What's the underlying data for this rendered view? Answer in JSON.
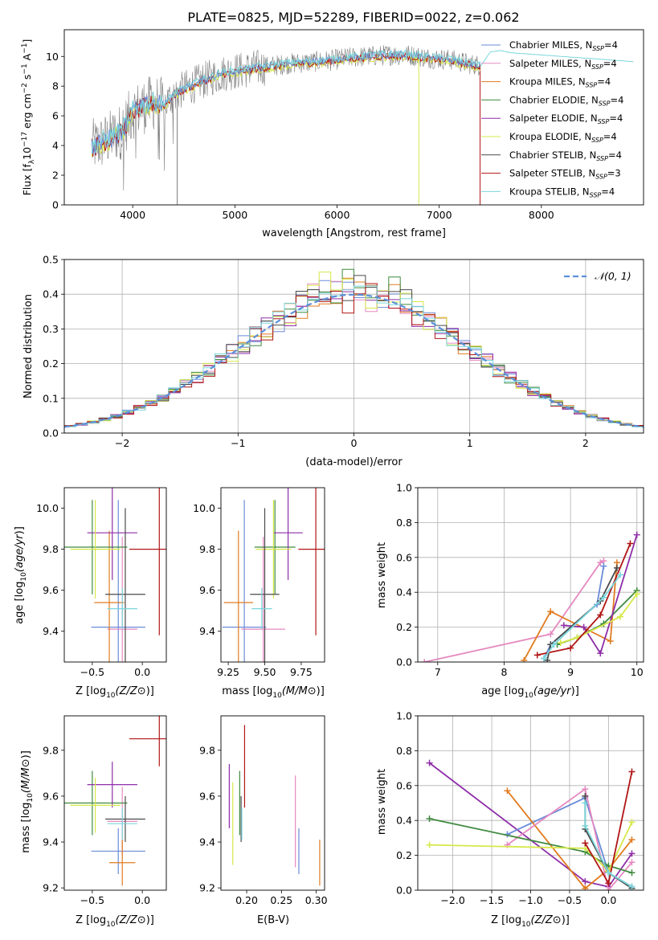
{
  "title": "PLATE=0825, MJD=52289, FIBERID=0022, z=0.062",
  "colors": {
    "Chabrier MILES": "#6a8bd8",
    "Salpeter MILES": "#e58ac0",
    "Kroupa MILES": "#e07b20",
    "Chabrier ELODIE": "#3f8a3f",
    "Salpeter ELODIE": "#8e2ea8",
    "Kroupa ELODIE": "#d6e84a",
    "Chabrier STELIB": "#4a4a4a",
    "Salpeter STELIB": "#b01515",
    "Kroupa STELIB": "#7ad6dc",
    "data": "#808080",
    "gauss": "#5b8fd9"
  },
  "chart_data": [
    {
      "type": "line",
      "xlabel": "wavelength [Angstrom, rest frame]",
      "ylabel": "Flux [f_λ10^-17 erg cm^-2 s^-1 A^-1]",
      "xlim": [
        3330,
        9000
      ],
      "ylim": [
        0,
        11.8
      ],
      "xticks": [
        4000,
        5000,
        6000,
        7000,
        8000
      ],
      "yticks": [
        0,
        2,
        4,
        6,
        8,
        10
      ],
      "grid": false,
      "legend_position": "top-right",
      "legend": [
        {
          "label": "Chabrier MILES, N",
          "sub": "SSP",
          "suffix": "=4",
          "model": "Chabrier MILES"
        },
        {
          "label": "Salpeter MILES, N",
          "sub": "SSP",
          "suffix": "=4",
          "model": "Salpeter MILES"
        },
        {
          "label": "Kroupa MILES, N",
          "sub": "SSP",
          "suffix": "=4",
          "model": "Kroupa MILES"
        },
        {
          "label": "Chabrier ELODIE, N",
          "sub": "SSP",
          "suffix": "=4",
          "model": "Chabrier ELODIE"
        },
        {
          "label": "Salpeter ELODIE, N",
          "sub": "SSP",
          "suffix": "=4",
          "model": "Salpeter ELODIE"
        },
        {
          "label": "Kroupa ELODIE, N",
          "sub": "SSP",
          "suffix": "=4",
          "model": "Kroupa ELODIE"
        },
        {
          "label": "Chabrier STELIB, N",
          "sub": "SSP",
          "suffix": "=4",
          "model": "Chabrier STELIB"
        },
        {
          "label": "Salpeter STELIB, N",
          "sub": "SSP",
          "suffix": "=3",
          "model": "Salpeter STELIB"
        },
        {
          "label": "Kroupa STELIB, N",
          "sub": "SSP",
          "suffix": "=4",
          "model": "Kroupa STELIB"
        }
      ],
      "continuum": {
        "x": [
          3600,
          3700,
          3800,
          3900,
          4000,
          4100,
          4200,
          4300,
          4400,
          4500,
          4700,
          4900,
          5100,
          5300,
          5500,
          5700,
          5900,
          6100,
          6300,
          6500,
          6700,
          6900,
          7100,
          7300,
          7400
        ],
        "y": [
          3.9,
          4.2,
          4.6,
          5.0,
          6.3,
          6.6,
          6.9,
          6.7,
          7.4,
          7.8,
          8.4,
          8.9,
          9.1,
          9.3,
          9.5,
          9.6,
          9.7,
          9.9,
          10.0,
          10.1,
          10.1,
          9.9,
          9.8,
          9.5,
          9.4
        ]
      },
      "model_tail": {
        "x": [
          7400,
          7500,
          7600,
          7700,
          7800,
          7900,
          8000,
          8100,
          8200,
          8300,
          8400,
          8500,
          8600,
          8700,
          8800,
          8900
        ],
        "y": [
          9.3,
          10.3,
          10.4,
          10.25,
          10.2,
          10.15,
          10.1,
          10.05,
          10.0,
          9.95,
          9.9,
          9.85,
          9.8,
          9.75,
          9.7,
          9.65
        ]
      }
    },
    {
      "type": "histogram",
      "xlabel": "(data-model)/error",
      "ylabel": "Normed distribution",
      "xlim": [
        -2.5,
        2.5
      ],
      "ylim": [
        0,
        0.5
      ],
      "xticks": [
        -2,
        -1,
        0,
        1,
        2
      ],
      "yticks": [
        0.0,
        0.1,
        0.2,
        0.3,
        0.4,
        0.5
      ],
      "grid": true,
      "legend_position": "top-right",
      "legend": [
        {
          "label": "𝒩(0, 1)"
        }
      ],
      "bin_width": 0.1,
      "bin_start": -2.5
    },
    {
      "type": "scatter",
      "xlabel": "Z [log10(Z/Z⊙)]",
      "ylabel": "age  [log10(age/yr)]",
      "xlim": [
        -0.78,
        0.24
      ],
      "ylim": [
        9.25,
        10.1
      ],
      "xticks": [
        -0.5,
        0.0
      ],
      "yticks": [
        9.4,
        9.6,
        9.8,
        10.0
      ],
      "points": [
        {
          "model": "Chabrier MILES",
          "x": -0.24,
          "xerr": 0.27,
          "y": 9.42,
          "yerr": 0.62
        },
        {
          "model": "Salpeter MILES",
          "x": -0.2,
          "xerr": 0.15,
          "y": 9.41,
          "yerr": 0.45
        },
        {
          "model": "Kroupa MILES",
          "x": -0.33,
          "xerr": 0.15,
          "y": 9.54,
          "yerr": 0.35
        },
        {
          "model": "Chabrier ELODIE",
          "x": -0.5,
          "xerr": 0.35,
          "y": 9.81,
          "yerr": 0.23
        },
        {
          "model": "Salpeter ELODIE",
          "x": -0.3,
          "xerr": 0.25,
          "y": 9.88,
          "yerr": 0.23
        },
        {
          "model": "Kroupa ELODIE",
          "x": -0.47,
          "xerr": 0.25,
          "y": 9.8,
          "yerr": 0.24
        },
        {
          "model": "Chabrier STELIB",
          "x": -0.17,
          "xerr": 0.2,
          "y": 9.58,
          "yerr": 0.42
        },
        {
          "model": "Salpeter STELIB",
          "x": 0.17,
          "xerr": 0.3,
          "y": 9.8,
          "yerr": 0.42
        },
        {
          "model": "Kroupa STELIB",
          "x": -0.2,
          "xerr": 0.15,
          "y": 9.51,
          "yerr": 0.1
        }
      ]
    },
    {
      "type": "scatter",
      "xlabel": "mass [log10(M/M⊙)]",
      "ylabel": "",
      "xlim": [
        9.2,
        9.91
      ],
      "ylim": [
        9.25,
        10.1
      ],
      "xticks": [
        9.25,
        9.5,
        9.75
      ],
      "yticks": [
        9.4,
        9.6,
        9.8,
        10.0
      ],
      "points": [
        {
          "model": "Chabrier MILES",
          "x": 9.36,
          "xerr": 0.15,
          "y": 9.42,
          "yerr": 0.62
        },
        {
          "model": "Salpeter MILES",
          "x": 9.49,
          "xerr": 0.15,
          "y": 9.41,
          "yerr": 0.45
        },
        {
          "model": "Kroupa MILES",
          "x": 9.32,
          "xerr": 0.1,
          "y": 9.54,
          "yerr": 0.35
        },
        {
          "model": "Chabrier ELODIE",
          "x": 9.57,
          "xerr": 0.14,
          "y": 9.81,
          "yerr": 0.23
        },
        {
          "model": "Salpeter ELODIE",
          "x": 9.66,
          "xerr": 0.1,
          "y": 9.88,
          "yerr": 0.23
        },
        {
          "model": "Kroupa ELODIE",
          "x": 9.56,
          "xerr": 0.12,
          "y": 9.8,
          "yerr": 0.24
        },
        {
          "model": "Chabrier STELIB",
          "x": 9.5,
          "xerr": 0.1,
          "y": 9.58,
          "yerr": 0.42
        },
        {
          "model": "Salpeter STELIB",
          "x": 9.85,
          "xerr": 0.12,
          "y": 9.8,
          "yerr": 0.42
        },
        {
          "model": "Kroupa STELIB",
          "x": 9.48,
          "xerr": 0.07,
          "y": 9.51,
          "yerr": 0.1
        }
      ]
    },
    {
      "type": "line",
      "xlabel": "age  [log10(age/yr)]",
      "ylabel": "mass weight",
      "xlim": [
        6.7,
        10.1
      ],
      "ylim": [
        0.0,
        1.0
      ],
      "xticks": [
        7,
        8,
        9,
        10
      ],
      "yticks": [
        0.0,
        0.2,
        0.4,
        0.6,
        0.8,
        1.0
      ],
      "grid": true,
      "series": [
        {
          "model": "Salpeter MILES",
          "x": [
            6.8,
            8.7,
            9.45,
            9.5
          ],
          "y": [
            0.0,
            0.16,
            0.57,
            0.58
          ]
        },
        {
          "model": "Chabrier MILES",
          "x": [
            8.6,
            8.7,
            9.4,
            9.5
          ],
          "y": [
            0.02,
            0.1,
            0.33,
            0.55
          ]
        },
        {
          "model": "Kroupa MILES",
          "x": [
            8.3,
            8.7,
            9.6,
            9.7
          ],
          "y": [
            0.01,
            0.29,
            0.12,
            0.57
          ]
        },
        {
          "model": "Chabrier ELODIE",
          "x": [
            8.8,
            9.1,
            9.5,
            10.0
          ],
          "y": [
            0.1,
            0.14,
            0.22,
            0.41
          ]
        },
        {
          "model": "Salpeter ELODIE",
          "x": [
            8.9,
            9.2,
            9.45,
            10.0
          ],
          "y": [
            0.21,
            0.2,
            0.05,
            0.73
          ]
        },
        {
          "model": "Kroupa ELODIE",
          "x": [
            8.85,
            9.1,
            9.75,
            10.0
          ],
          "y": [
            0.11,
            0.14,
            0.26,
            0.39
          ]
        },
        {
          "model": "Chabrier STELIB",
          "x": [
            8.65,
            8.7,
            9.45,
            9.7
          ],
          "y": [
            0.01,
            0.1,
            0.35,
            0.54
          ]
        },
        {
          "model": "Salpeter STELIB",
          "x": [
            8.5,
            9.0,
            9.45,
            9.9
          ],
          "y": [
            0.04,
            0.08,
            0.27,
            0.68
          ]
        },
        {
          "model": "Kroupa STELIB",
          "x": [
            8.6,
            8.75,
            9.5,
            9.75
          ],
          "y": [
            0.02,
            0.1,
            0.37,
            0.5
          ]
        }
      ]
    },
    {
      "type": "scatter",
      "xlabel": "Z [log10(Z/Z⊙)]",
      "ylabel": "mass [log10(M/M⊙)]",
      "xlim": [
        -0.78,
        0.24
      ],
      "ylim": [
        9.19,
        9.95
      ],
      "xticks": [
        -0.5,
        0.0
      ],
      "yticks": [
        9.2,
        9.4,
        9.6,
        9.8
      ],
      "points": [
        {
          "model": "Chabrier MILES",
          "x": -0.24,
          "xerr": 0.27,
          "y": 9.36,
          "yerr": 0.1
        },
        {
          "model": "Salpeter MILES",
          "x": -0.2,
          "xerr": 0.15,
          "y": 9.49,
          "yerr": 0.15
        },
        {
          "model": "Kroupa MILES",
          "x": -0.2,
          "xerr": 0.13,
          "y": 9.31,
          "yerr": 0.1
        },
        {
          "model": "Chabrier ELODIE",
          "x": -0.5,
          "xerr": 0.35,
          "y": 9.57,
          "yerr": 0.14
        },
        {
          "model": "Salpeter ELODIE",
          "x": -0.3,
          "xerr": 0.25,
          "y": 9.65,
          "yerr": 0.1
        },
        {
          "model": "Kroupa ELODIE",
          "x": -0.47,
          "xerr": 0.25,
          "y": 9.56,
          "yerr": 0.12
        },
        {
          "model": "Chabrier STELIB",
          "x": -0.17,
          "xerr": 0.2,
          "y": 9.5,
          "yerr": 0.1
        },
        {
          "model": "Salpeter STELIB",
          "x": 0.17,
          "xerr": 0.3,
          "y": 9.85,
          "yerr": 0.12
        },
        {
          "model": "Kroupa STELIB",
          "x": -0.2,
          "xerr": 0.15,
          "y": 9.48,
          "yerr": 0.07
        }
      ]
    },
    {
      "type": "scatter",
      "xlabel": "E(B-V)",
      "ylabel": "",
      "xlim": [
        0.163,
        0.312
      ],
      "ylim": [
        9.19,
        9.95
      ],
      "xticks": [
        0.2,
        0.25,
        0.3
      ],
      "yticks": [
        9.2,
        9.4,
        9.6,
        9.8
      ],
      "points": [
        {
          "model": "Chabrier MILES",
          "x": 0.275,
          "xerr": 0,
          "y": 9.36,
          "yerr": 0.1
        },
        {
          "model": "Salpeter MILES",
          "x": 0.27,
          "xerr": 0,
          "y": 9.49,
          "yerr": 0.2
        },
        {
          "model": "Kroupa MILES",
          "x": 0.305,
          "xerr": 0,
          "y": 9.31,
          "yerr": 0.1
        },
        {
          "model": "Chabrier ELODIE",
          "x": 0.19,
          "xerr": 0,
          "y": 9.57,
          "yerr": 0.14
        },
        {
          "model": "Salpeter ELODIE",
          "x": 0.175,
          "xerr": 0,
          "y": 9.6,
          "yerr": 0.14
        },
        {
          "model": "Kroupa ELODIE",
          "x": 0.18,
          "xerr": 0,
          "y": 9.48,
          "yerr": 0.18
        },
        {
          "model": "Chabrier STELIB",
          "x": 0.192,
          "xerr": 0,
          "y": 9.5,
          "yerr": 0.1
        },
        {
          "model": "Salpeter STELIB",
          "x": 0.197,
          "xerr": 0,
          "y": 9.73,
          "yerr": 0.18
        },
        {
          "model": "Kroupa STELIB",
          "x": 0.193,
          "xerr": 0,
          "y": 9.48,
          "yerr": 0.07
        }
      ]
    },
    {
      "type": "line",
      "xlabel": "Z [log10(Z/Z⊙)]",
      "ylabel": "mass weight",
      "xlim": [
        -2.45,
        0.45
      ],
      "ylim": [
        0.0,
        1.0
      ],
      "xticks": [
        -2.0,
        -1.5,
        -1.0,
        -0.5,
        0.0
      ],
      "yticks": [
        0.0,
        0.2,
        0.4,
        0.6,
        0.8,
        1.0
      ],
      "grid": true,
      "series": [
        {
          "model": "Salpeter ELODIE",
          "x": [
            -2.3,
            -0.3,
            0.0,
            0.3
          ],
          "y": [
            0.73,
            0.05,
            0.02,
            0.21
          ]
        },
        {
          "model": "Chabrier MILES",
          "x": [
            -1.3,
            -0.3,
            0.0,
            0.3
          ],
          "y": [
            0.32,
            0.53,
            0.1,
            0.02
          ]
        },
        {
          "model": "Kroupa MILES",
          "x": [
            -1.3,
            -0.3,
            0.0,
            0.3
          ],
          "y": [
            0.57,
            0.01,
            0.12,
            0.29
          ]
        },
        {
          "model": "Salpeter MILES",
          "x": [
            -1.3,
            -0.3,
            0.0,
            0.3
          ],
          "y": [
            0.26,
            0.58,
            0.0,
            0.16
          ]
        },
        {
          "model": "Chabrier ELODIE",
          "x": [
            -2.3,
            -0.3,
            0.0,
            0.3
          ],
          "y": [
            0.41,
            0.22,
            0.14,
            0.1
          ]
        },
        {
          "model": "Kroupa ELODIE",
          "x": [
            -2.3,
            -0.3,
            0.0,
            0.3
          ],
          "y": [
            0.26,
            0.24,
            0.11,
            0.39
          ]
        },
        {
          "model": "Chabrier STELIB",
          "x": [
            -0.3,
            -0.3,
            0.0,
            0.3
          ],
          "y": [
            0.54,
            0.35,
            0.1,
            0.01
          ]
        },
        {
          "model": "Salpeter STELIB",
          "x": [
            -0.3,
            0.0,
            0.3
          ],
          "y": [
            0.27,
            0.04,
            0.68
          ]
        },
        {
          "model": "Kroupa STELIB",
          "x": [
            -0.3,
            -0.3,
            0.0,
            0.3
          ],
          "y": [
            0.5,
            0.37,
            0.1,
            0.02
          ]
        }
      ]
    }
  ]
}
